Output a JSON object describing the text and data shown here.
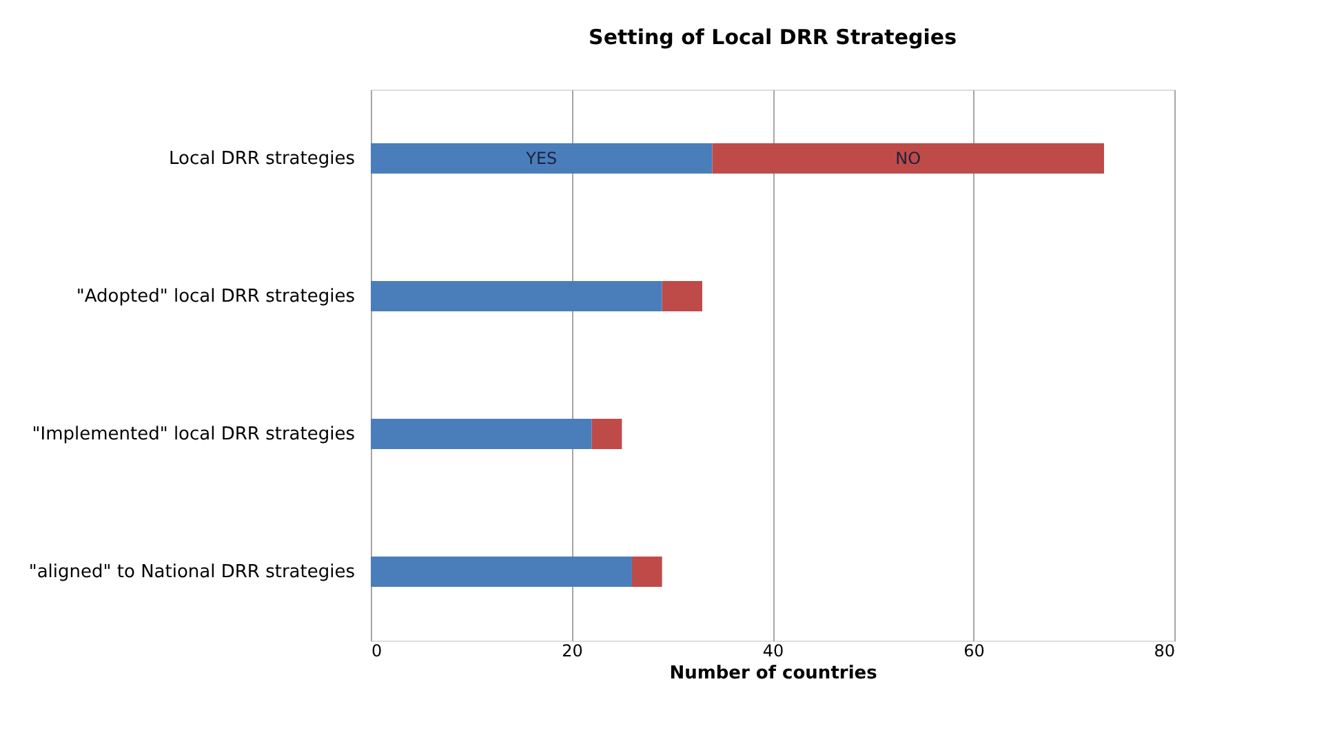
{
  "chart_data": {
    "type": "bar",
    "orientation": "horizontal",
    "stacked": true,
    "title": "Setting of Local DRR Strategies",
    "xlabel": "Number of countries",
    "categories": [
      "Local DRR strategies",
      "\"Adopted\" local DRR strategies",
      "\"Implemented\" local DRR strategies",
      "\"aligned\" to National DRR strategies"
    ],
    "series": [
      {
        "name": "YES",
        "color": "#4a7ebb",
        "values": [
          34,
          29,
          22,
          26
        ]
      },
      {
        "name": "NO",
        "color": "#be4b48",
        "values": [
          39,
          4,
          3,
          3
        ]
      }
    ],
    "xlim": [
      0,
      80
    ],
    "xticks": [
      0,
      20,
      40,
      60,
      80
    ],
    "grid": "x",
    "legend": false
  }
}
